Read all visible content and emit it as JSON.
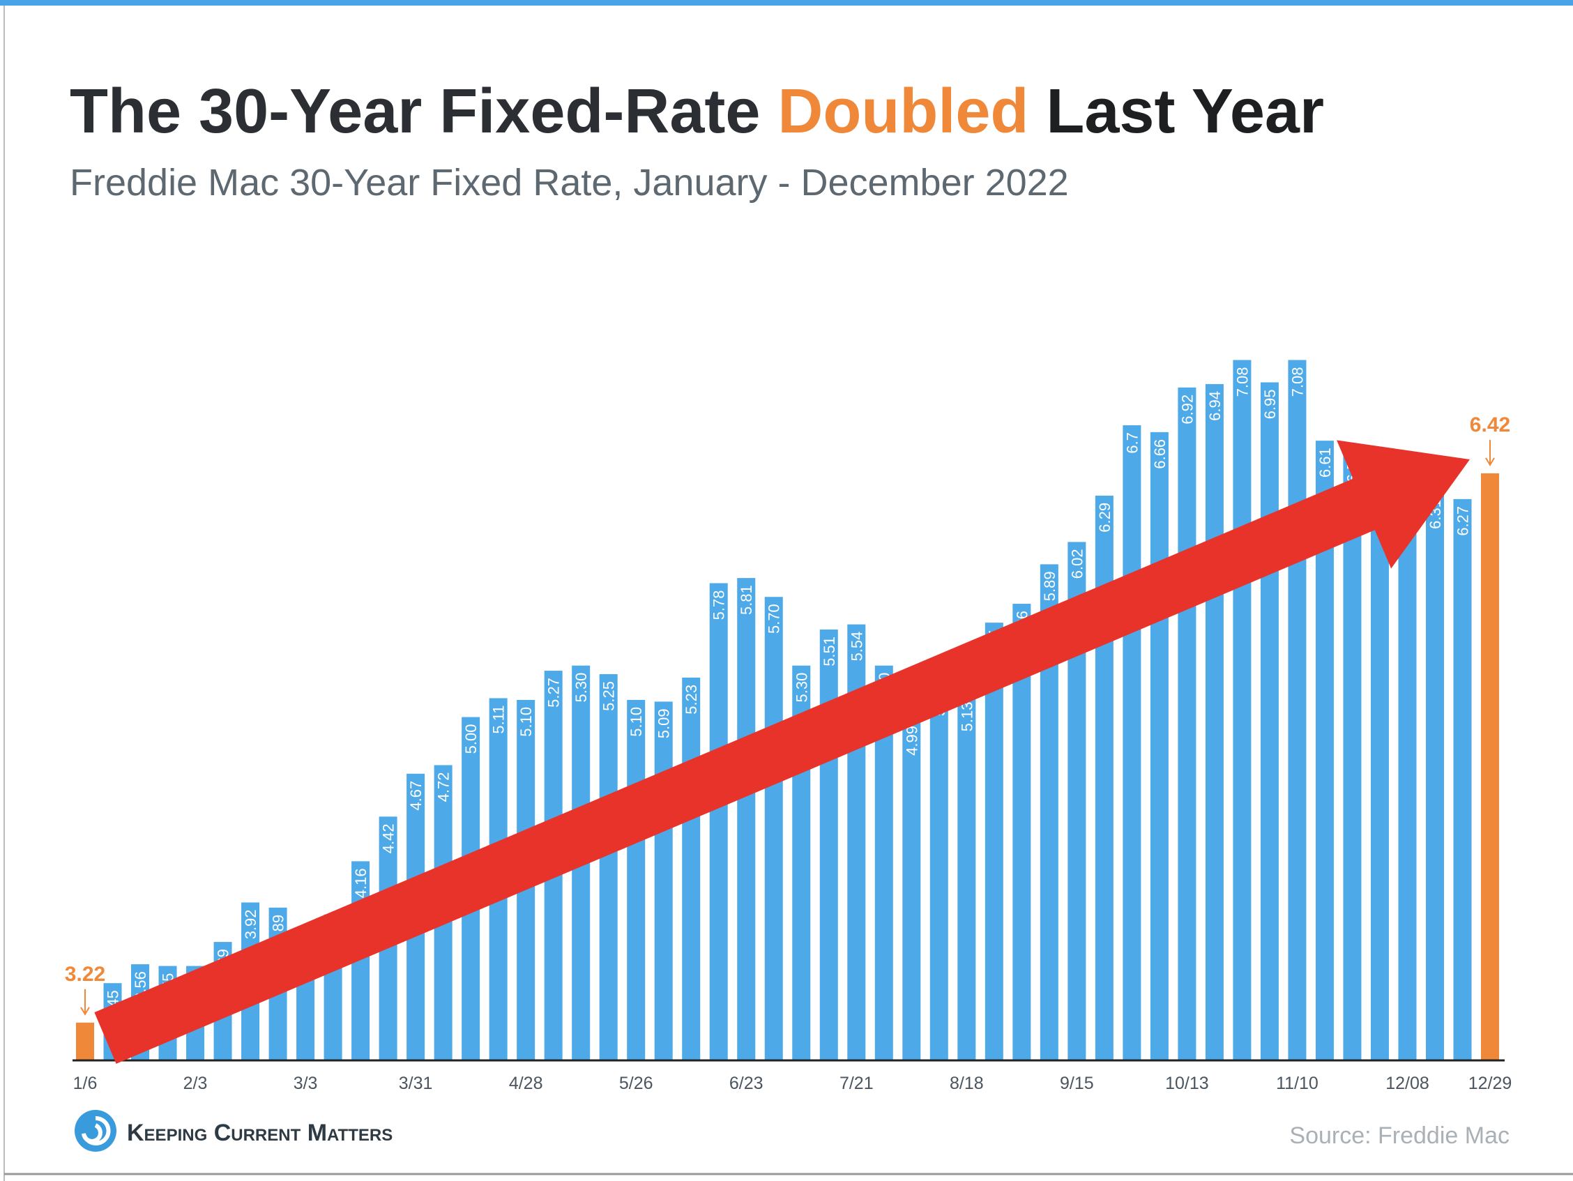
{
  "chart_data": {
    "type": "bar",
    "title_parts": [
      {
        "text": "The 30-Year Fixed-Rate ",
        "color": "#2b2f33"
      },
      {
        "text": "Doubled",
        "color": "#f0883a"
      },
      {
        "text": " Last Year",
        "color": "#1e1f21"
      }
    ],
    "subtitle": "Freddie Mac 30-Year Fixed Rate, January - December 2022",
    "categories": [
      "1/6",
      null,
      null,
      null,
      "2/3",
      null,
      null,
      null,
      "3/3",
      null,
      null,
      null,
      "3/31",
      null,
      null,
      null,
      "4/28",
      null,
      null,
      null,
      "5/26",
      null,
      null,
      null,
      "6/23",
      null,
      null,
      null,
      "7/21",
      null,
      null,
      null,
      "8/18",
      null,
      null,
      null,
      "9/15",
      null,
      null,
      null,
      "10/13",
      null,
      null,
      null,
      "11/10",
      null,
      null,
      null,
      "12/08",
      null,
      null,
      "12/29"
    ],
    "values": [
      3.22,
      3.45,
      3.56,
      3.55,
      3.55,
      3.69,
      3.92,
      3.89,
      3.76,
      3.85,
      4.16,
      4.42,
      4.67,
      4.72,
      5.0,
      5.11,
      5.1,
      5.27,
      5.3,
      5.25,
      5.1,
      5.09,
      5.23,
      5.78,
      5.81,
      5.7,
      5.3,
      5.51,
      5.54,
      5.3,
      4.99,
      5.22,
      5.13,
      5.55,
      5.66,
      5.89,
      6.02,
      6.29,
      6.7,
      6.66,
      6.92,
      6.94,
      7.08,
      6.95,
      7.08,
      6.61,
      6.58,
      6.49,
      6.33,
      6.31,
      6.27,
      6.42
    ],
    "value_labels": [
      "3.22",
      "3.45",
      "3.56",
      "3.55",
      "3.55",
      "3.69",
      "3.92",
      "3.89",
      "3.76",
      "3.85",
      "4.16",
      "4.42",
      "4.67",
      "4.72",
      "5.00",
      "5.11",
      "5.10",
      "5.27",
      "5.30",
      "5.25",
      "5.10",
      "5.09",
      "5.23",
      "5.78",
      "5.81",
      "5.70",
      "5.30",
      "5.51",
      "5.54",
      "5.30",
      "4.99",
      "5.22",
      "5.13",
      "5.55",
      "5.66",
      "5.89",
      "6.02",
      "6.29",
      "6.7",
      "6.66",
      "6.92",
      "6.94",
      "7.08",
      "6.95",
      "7.08",
      "6.61",
      "6.58",
      "6.49",
      "6.33",
      "6.31",
      "6.27",
      "6.42"
    ],
    "bar_colors": [
      "#f0883a",
      "#4da9e8",
      "#4da9e8",
      "#4da9e8",
      "#4da9e8",
      "#4da9e8",
      "#4da9e8",
      "#4da9e8",
      "#4da9e8",
      "#4da9e8",
      "#4da9e8",
      "#4da9e8",
      "#4da9e8",
      "#4da9e8",
      "#4da9e8",
      "#4da9e8",
      "#4da9e8",
      "#4da9e8",
      "#4da9e8",
      "#4da9e8",
      "#4da9e8",
      "#4da9e8",
      "#4da9e8",
      "#4da9e8",
      "#4da9e8",
      "#4da9e8",
      "#4da9e8",
      "#4da9e8",
      "#4da9e8",
      "#4da9e8",
      "#4da9e8",
      "#4da9e8",
      "#4da9e8",
      "#4da9e8",
      "#4da9e8",
      "#4da9e8",
      "#4da9e8",
      "#4da9e8",
      "#4da9e8",
      "#4da9e8",
      "#4da9e8",
      "#4da9e8",
      "#4da9e8",
      "#4da9e8",
      "#4da9e8",
      "#4da9e8",
      "#4da9e8",
      "#4da9e8",
      "#4da9e8",
      "#4da9e8",
      "#4da9e8",
      "#f0883a"
    ],
    "ylim": [
      3,
      7.5
    ],
    "logo": "Keeping Current Matters",
    "source": "Source: Freddie Mac"
  }
}
